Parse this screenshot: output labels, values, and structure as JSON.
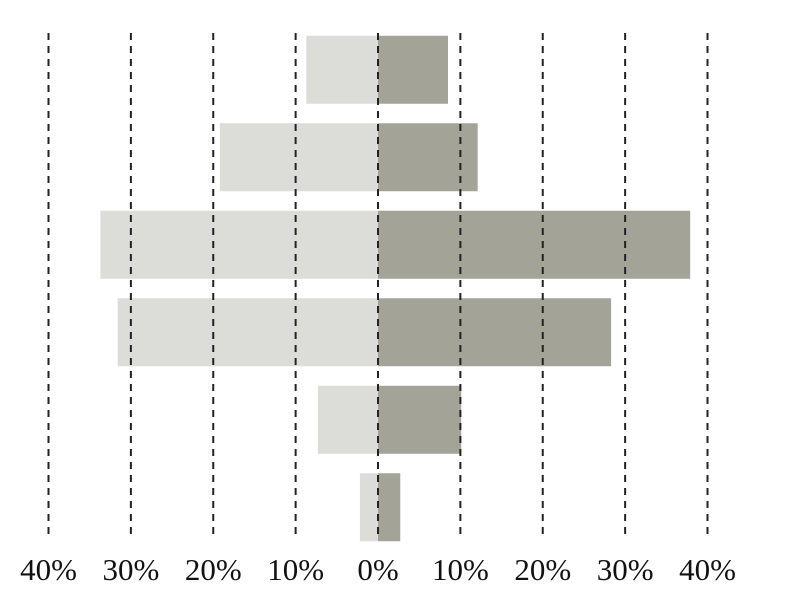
{
  "chart_data": {
    "type": "bar",
    "orientation": "horizontal",
    "categories": [
      null,
      null,
      null,
      null,
      null,
      null
    ],
    "series": [
      {
        "color": "#dcdcd9",
        "values": [
          -8.7,
          -19.2,
          -33.7,
          -31.6,
          -7.3,
          -2.2
        ]
      },
      {
        "color": "#a3a397",
        "values": [
          8.5,
          12.1,
          37.9,
          28.3,
          10.1,
          2.7
        ]
      }
    ],
    "xlim": [
      -40,
      40
    ],
    "xticks": [
      {
        "value": -40,
        "label": "40%"
      },
      {
        "value": -30,
        "label": "30%"
      },
      {
        "value": -20,
        "label": "20%"
      },
      {
        "value": -10,
        "label": "10%"
      },
      {
        "value": 0,
        "label": "0%"
      },
      {
        "value": 10,
        "label": "10%"
      },
      {
        "value": 20,
        "label": "20%"
      },
      {
        "value": 30,
        "label": "30%"
      },
      {
        "value": 40,
        "label": "40%"
      }
    ],
    "grid": true
  }
}
